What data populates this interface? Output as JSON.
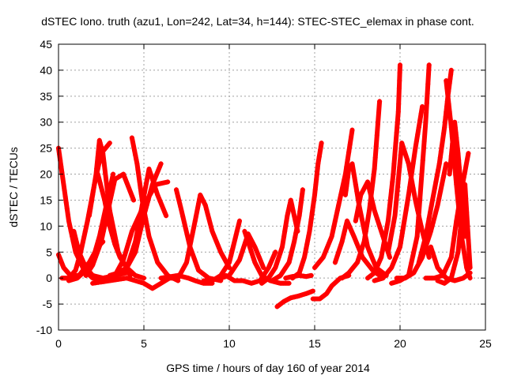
{
  "chart_data": {
    "type": "line",
    "title": "dSTEC Iono. truth (azu1, Lon=242, Lat=34, h=144): STEC-STEC_elemax in phase cont.",
    "xlabel": "GPS time / hours of day 160 of year 2014",
    "ylabel": "dSTEC  / TECUs",
    "xlim": [
      0,
      25
    ],
    "ylim": [
      -10,
      45
    ],
    "xticks": [
      0,
      5,
      10,
      15,
      20,
      25
    ],
    "yticks": [
      -10,
      -5,
      0,
      5,
      10,
      15,
      20,
      25,
      30,
      35,
      40,
      45
    ],
    "grid": true,
    "color": "#ff0000",
    "marker": "plus",
    "series": [
      {
        "x": [
          0.0,
          0.3,
          0.6,
          1.0,
          1.5,
          2.0,
          2.6
        ],
        "y": [
          25,
          18,
          11,
          5,
          1.5,
          0,
          -0.5
        ]
      },
      {
        "x": [
          0.0,
          0.3,
          0.7,
          1.2,
          1.8,
          2.3,
          2.6
        ],
        "y": [
          4.5,
          2,
          0.5,
          0.5,
          3,
          6,
          7
        ]
      },
      {
        "x": [
          0.2,
          0.6,
          1.0,
          1.3,
          1.7,
          2.1,
          2.5,
          3.0
        ],
        "y": [
          0,
          0,
          1.5,
          5,
          11,
          18,
          24,
          26
        ]
      },
      {
        "x": [
          0.9,
          1.2,
          1.6,
          2.0,
          2.6,
          3.3,
          4.0
        ],
        "y": [
          9,
          5,
          2,
          0.5,
          0,
          0.5,
          1
        ]
      },
      {
        "x": [
          0.6,
          1.1,
          1.6,
          2.0,
          2.4,
          2.8,
          3.2
        ],
        "y": [
          -0.5,
          0,
          1.5,
          3.5,
          8,
          14,
          20
        ]
      },
      {
        "x": [
          1.8,
          2.2,
          2.4,
          2.6,
          3.0,
          3.5,
          4.2
        ],
        "y": [
          12,
          20,
          26.5,
          24,
          13,
          5,
          0.5
        ]
      },
      {
        "x": [
          2.3,
          2.7,
          3.0,
          3.3,
          3.6,
          4.0,
          4.5,
          5.0
        ],
        "y": [
          20,
          15,
          10,
          6.5,
          4,
          2,
          0.5,
          0
        ]
      },
      {
        "x": [
          1.6,
          2.0,
          2.5,
          2.9,
          3.3,
          3.8,
          4.4
        ],
        "y": [
          0.5,
          2.5,
          7,
          13,
          19,
          20,
          15
        ]
      },
      {
        "x": [
          2.8,
          3.3,
          3.8,
          4.3,
          5.0,
          5.7,
          6.4
        ],
        "y": [
          0,
          0.5,
          3.5,
          9,
          14,
          18,
          18.5
        ]
      },
      {
        "x": [
          4.3,
          4.6,
          4.9,
          5.3,
          5.8,
          6.4,
          7.0
        ],
        "y": [
          27,
          22,
          15,
          8,
          3,
          0.5,
          -0.5
        ]
      },
      {
        "x": [
          3.0,
          3.5,
          4.0,
          4.5,
          5.0,
          5.5,
          6.0
        ],
        "y": [
          0.5,
          1,
          2,
          5,
          12,
          18,
          22
        ]
      },
      {
        "x": [
          4.0,
          4.5,
          4.9,
          5.3,
          5.8,
          6.3
        ],
        "y": [
          2,
          7,
          14,
          21,
          16,
          12
        ]
      },
      {
        "x": [
          2.0,
          3.0,
          4.0,
          5.0,
          5.5,
          6.0,
          6.5
        ],
        "y": [
          -1,
          -0.5,
          0,
          -1,
          -2,
          -1,
          0
        ]
      },
      {
        "x": [
          6.9,
          7.2,
          7.7,
          8.2,
          8.8,
          9.5
        ],
        "y": [
          17,
          13,
          6,
          1.5,
          0,
          -0.5
        ]
      },
      {
        "x": [
          6.3,
          7.0,
          7.5,
          8.0,
          8.3,
          8.6,
          9.0,
          9.5,
          10.0
        ],
        "y": [
          0,
          0,
          3,
          11,
          16,
          14,
          9,
          5,
          2
        ]
      },
      {
        "x": [
          6.0,
          7.0,
          7.6,
          8.0,
          8.5,
          9.0
        ],
        "y": [
          0,
          0.5,
          0,
          -0.5,
          -1,
          -1
        ]
      },
      {
        "x": [
          8.5,
          9.0,
          9.5,
          10.0,
          10.3,
          10.6
        ],
        "y": [
          -0.5,
          -0.5,
          0.5,
          3,
          7,
          11
        ]
      },
      {
        "x": [
          9.5,
          10.0,
          10.6,
          11.1,
          11.5,
          12.0
        ],
        "y": [
          0,
          0.5,
          3.5,
          8.5,
          6,
          2
        ]
      },
      {
        "x": [
          9.8,
          10.3,
          10.8,
          11.3,
          11.8,
          12.3,
          12.7
        ],
        "y": [
          0.5,
          -0.5,
          -0.5,
          -1,
          -0.5,
          2,
          5
        ]
      },
      {
        "x": [
          10.9,
          11.2,
          11.5,
          11.9,
          12.4,
          13.0,
          13.5
        ],
        "y": [
          9,
          6,
          3,
          0.5,
          -0.5,
          -1,
          -1
        ]
      },
      {
        "x": [
          11.9,
          12.3,
          12.7,
          13.1,
          13.4,
          13.6,
          14.0
        ],
        "y": [
          -1,
          0,
          2,
          6,
          12,
          15,
          9
        ]
      },
      {
        "x": [
          12.5,
          13.0,
          13.5,
          13.8,
          14.1,
          14.3
        ],
        "y": [
          -0.5,
          0.5,
          3,
          7,
          12,
          17
        ]
      },
      {
        "x": [
          12.8,
          13.2,
          13.6,
          14.0,
          14.5,
          14.9
        ],
        "y": [
          -5.5,
          -4.5,
          -3.8,
          -3.5,
          -3,
          -2.5
        ]
      },
      {
        "x": [
          13.3,
          13.7,
          14.1,
          14.5,
          14.8
        ],
        "y": [
          0,
          0.3,
          0.5,
          0.3,
          0.5
        ]
      },
      {
        "x": [
          13.7,
          14.1,
          14.4,
          14.7,
          15.0,
          15.2,
          15.4
        ],
        "y": [
          0,
          1,
          4,
          9,
          16,
          22,
          26
        ]
      },
      {
        "x": [
          14.9,
          15.3,
          15.7,
          16.0,
          16.5,
          17.0
        ],
        "y": [
          -4,
          -4,
          -3,
          -1.5,
          0,
          0.5
        ]
      },
      {
        "x": [
          15.0,
          15.5,
          16.0,
          16.4,
          16.8,
          17.2
        ],
        "y": [
          2,
          4,
          8,
          14,
          20,
          28.5
        ]
      },
      {
        "x": [
          16.2,
          16.6,
          16.9,
          17.3,
          17.8,
          18.4,
          19.0
        ],
        "y": [
          3,
          7,
          11,
          8,
          4,
          1.5,
          0
        ]
      },
      {
        "x": [
          16.8,
          17.0,
          17.2,
          17.6,
          18.1,
          18.6,
          19.2
        ],
        "y": [
          16,
          21,
          22,
          14,
          6,
          2,
          0.5
        ]
      },
      {
        "x": [
          16.6,
          17.0,
          17.5,
          17.9,
          18.2,
          18.5,
          18.8
        ],
        "y": [
          0,
          1,
          3,
          7,
          13,
          21,
          34
        ]
      },
      {
        "x": [
          17.4,
          17.7,
          18.1,
          18.5,
          19.0,
          19.4
        ],
        "y": [
          11,
          16,
          18.5,
          13,
          8,
          4
        ]
      },
      {
        "x": [
          18.1,
          18.5,
          18.9,
          19.3,
          19.6,
          19.9,
          20.0
        ],
        "y": [
          0,
          1,
          4,
          11,
          20,
          32,
          41
        ]
      },
      {
        "x": [
          18.5,
          19.0,
          19.5,
          20.0,
          20.2,
          20.5,
          20.9,
          21.3
        ],
        "y": [
          -0.5,
          0,
          2,
          6,
          10,
          16,
          25,
          33
        ]
      },
      {
        "x": [
          19.3,
          19.7,
          20.1,
          20.5,
          20.9,
          21.3,
          21.7
        ],
        "y": [
          5,
          12,
          26,
          22,
          15,
          9,
          4
        ]
      },
      {
        "x": [
          19.5,
          20.0,
          20.5,
          21.0,
          21.5,
          21.7
        ],
        "y": [
          -1,
          -0.5,
          0.5,
          8,
          30,
          41
        ]
      },
      {
        "x": [
          19.8,
          20.3,
          20.8,
          21.3,
          21.8,
          22.2,
          22.7
        ],
        "y": [
          0,
          0,
          1,
          4,
          9,
          14,
          22
        ]
      },
      {
        "x": [
          21.1,
          21.5,
          21.9,
          22.3,
          22.6,
          22.8,
          23.0
        ],
        "y": [
          3,
          8,
          15,
          22,
          29,
          35,
          40
        ]
      },
      {
        "x": [
          22.7,
          23.0,
          23.3,
          23.6,
          23.9,
          24.1
        ],
        "y": [
          38,
          29,
          18,
          8,
          2,
          0
        ]
      },
      {
        "x": [
          21.5,
          22.0,
          22.5,
          23.0,
          23.3,
          23.6,
          24.0
        ],
        "y": [
          0,
          0,
          0.5,
          4,
          11,
          17,
          24
        ]
      },
      {
        "x": [
          22.2,
          22.6,
          23.0,
          23.4,
          23.8,
          24.1
        ],
        "y": [
          -0.5,
          -1,
          0,
          5,
          18,
          2
        ]
      },
      {
        "x": [
          22.9,
          23.1,
          23.2,
          23.4,
          23.6,
          23.8
        ],
        "y": [
          20,
          27,
          30,
          24,
          16,
          8
        ]
      },
      {
        "x": [
          21.8,
          22.2,
          22.7,
          23.2,
          23.7,
          24.1
        ],
        "y": [
          6,
          2,
          0,
          -0.5,
          0,
          1
        ]
      }
    ]
  }
}
